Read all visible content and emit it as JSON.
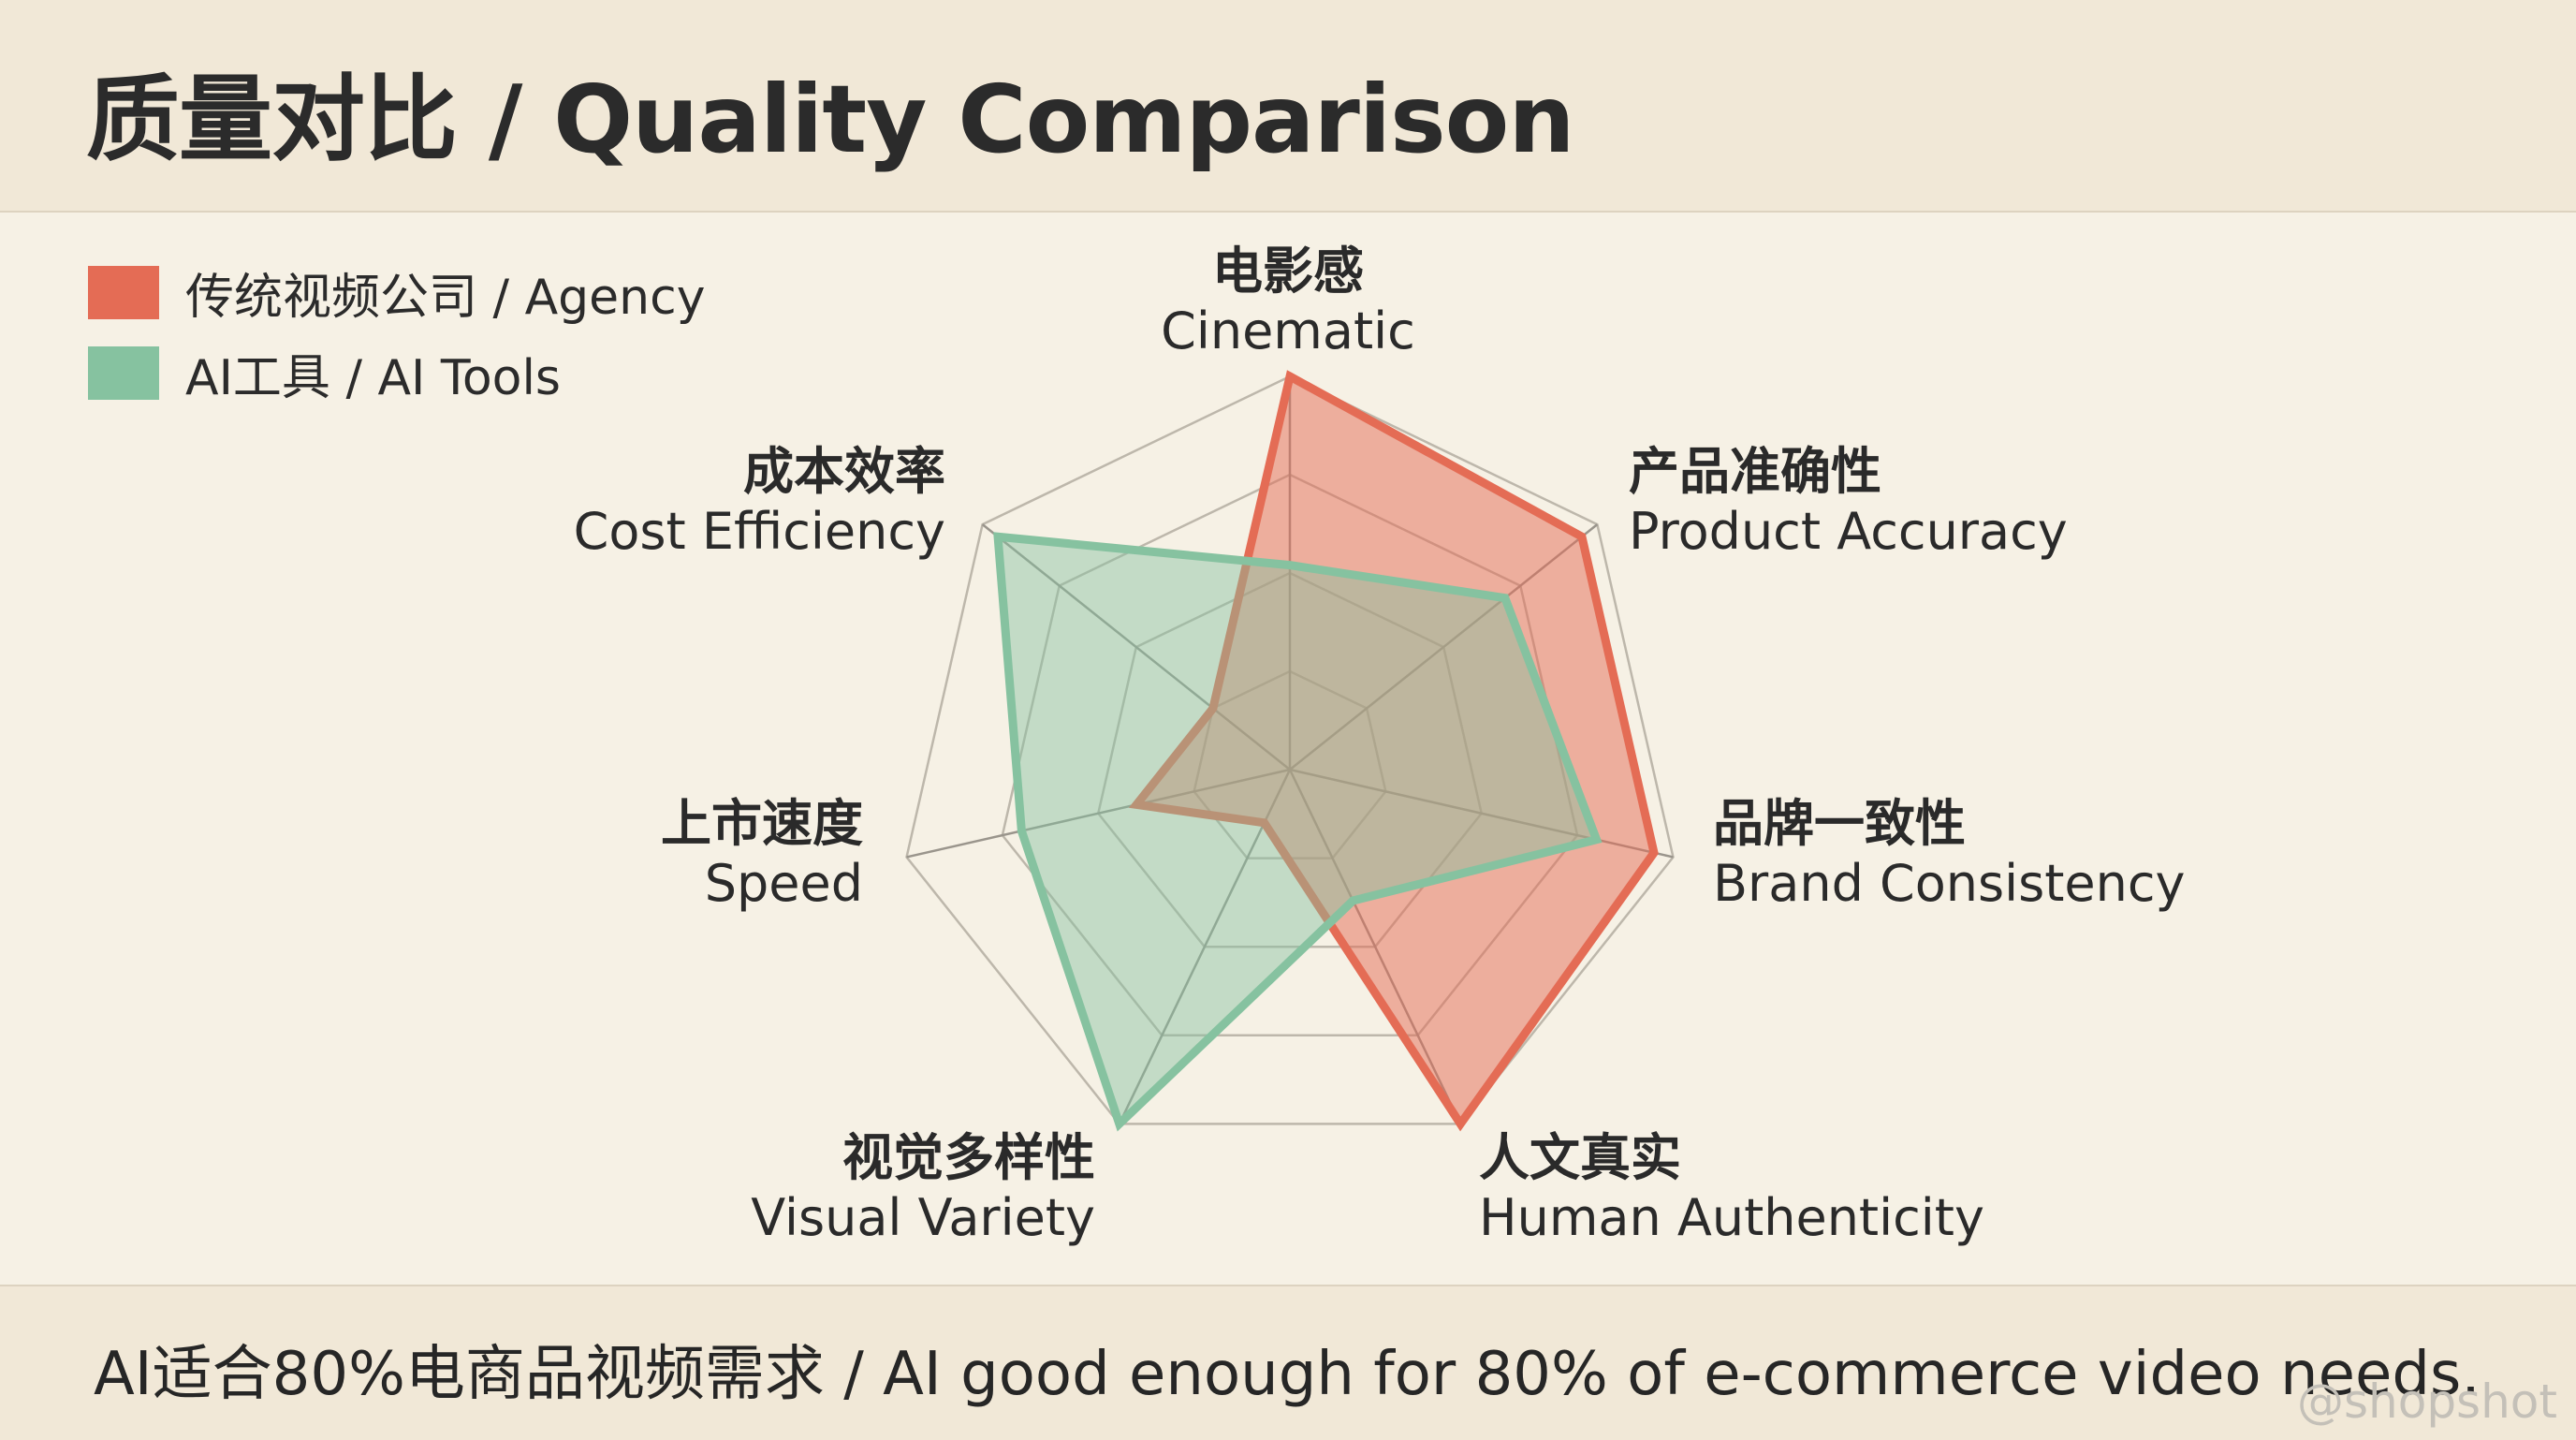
{
  "header": {
    "title": "质量对比 / Quality Comparison"
  },
  "legend": [
    {
      "label": "传统视频公司 / Agency",
      "color": "#e46c55"
    },
    {
      "label": "AI工具 / AI Tools",
      "color": "#86c2a0"
    }
  ],
  "chart_data": {
    "type": "radar",
    "axes": [
      {
        "zh": "电影感",
        "en": "Cinematic"
      },
      {
        "zh": "产品准确性",
        "en": "Product Accuracy"
      },
      {
        "zh": "品牌一致性",
        "en": "Brand Consistency"
      },
      {
        "zh": "人文真实",
        "en": "Human Authenticity"
      },
      {
        "zh": "视觉多样性",
        "en": "Visual Variety"
      },
      {
        "zh": "上市速度",
        "en": "Speed"
      },
      {
        "zh": "成本效率",
        "en": "Cost Efficiency"
      }
    ],
    "max": 100,
    "grid_levels": 4,
    "series": [
      {
        "name": "传统视频公司 / Agency",
        "color": "#e46c55",
        "values": [
          100,
          95,
          95,
          100,
          15,
          40,
          25
        ]
      },
      {
        "name": "AI工具 / AI Tools",
        "color": "#86c2a0",
        "values": [
          52,
          70,
          80,
          37,
          100,
          70,
          95
        ]
      }
    ]
  },
  "footer": {
    "text": "AI适合80%电商品视频需求 / AI good enough for 80% of e-commerce video needs."
  },
  "watermark": "@shopshot"
}
